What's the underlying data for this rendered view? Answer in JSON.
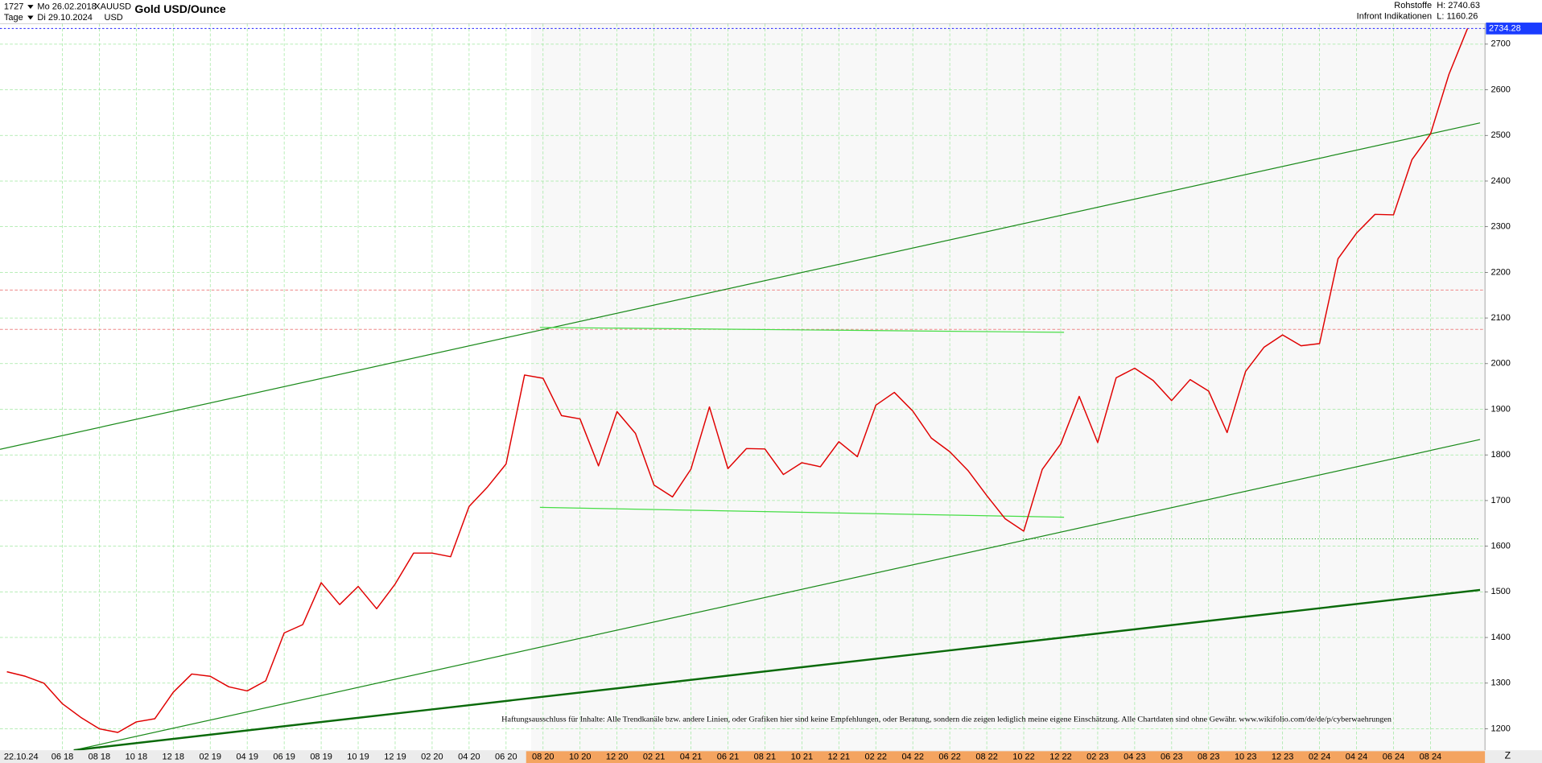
{
  "chart_data": {
    "type": "line",
    "title": "Gold USD/Ounce",
    "symbol": "XAUUSD",
    "currency": "USD",
    "count": "1727",
    "period": "Tage",
    "start": "Mo 26.02.2018",
    "end": "Di 29.10.2024",
    "group": "Rohstoffe",
    "source": "Infront Indikationen",
    "high": "H: 2740.63",
    "low": "L: 1160.26",
    "date_marker": "22.10.24",
    "corner_label": "Z",
    "disclaimer": "Haftungsausschluss für Inhalte: Alle Trendkanäle bzw. andere Linien, oder Grafiken hier sind keine Empfehlungen, oder Beratung, sondern die zeigen lediglich meine eigene Einschätzung. Alle Chartdaten sind ohne Gewähr. www.wikifolio.com/de/de/p/cyberwaehrungen",
    "last_price": 2734.28,
    "color": "#e00000",
    "categories": [
      null,
      null,
      null,
      "06 18",
      null,
      "08 18",
      null,
      "10 18",
      null,
      "12 18",
      null,
      "02 19",
      null,
      "04 19",
      null,
      "06 19",
      null,
      "08 19",
      null,
      "10 19",
      null,
      "12 19",
      null,
      "02 20",
      null,
      "04 20",
      null,
      "06 20",
      null,
      "08 20",
      null,
      "10 20",
      null,
      "12 20",
      null,
      "02 21",
      null,
      "04 21",
      null,
      "06 21",
      null,
      "08 21",
      null,
      "10 21",
      null,
      "12 21",
      null,
      "02 22",
      null,
      "04 22",
      null,
      "06 22",
      null,
      "08 22",
      null,
      "10 22",
      null,
      "12 22",
      null,
      "02 23",
      null,
      "04 23",
      null,
      "06 23",
      null,
      "08 23",
      null,
      "10 23",
      null,
      "12 23",
      null,
      "02 24",
      null,
      "04 24",
      null,
      "06 24",
      null,
      "08 24",
      null,
      null
    ],
    "values": [
      1325,
      1315,
      1300,
      1255,
      1225,
      1200,
      1192,
      1215,
      1222,
      1280,
      1320,
      1315,
      1292,
      1283,
      1305,
      1410,
      1428,
      1520,
      1472,
      1512,
      1463,
      1517,
      1585,
      1585,
      1577,
      1687,
      1730,
      1780,
      1975,
      1968,
      1886,
      1879,
      1776,
      1895,
      1847,
      1734,
      1708,
      1769,
      1905,
      1770,
      1814,
      1813,
      1757,
      1783,
      1774,
      1829,
      1796,
      1909,
      1937,
      1896,
      1837,
      1807,
      1765,
      1711,
      1660,
      1633,
      1768,
      1824,
      1928,
      1827,
      1969,
      1990,
      1963,
      1919,
      1965,
      1940,
      1849,
      1983,
      2036,
      2063,
      2039,
      2044,
      2230,
      2286,
      2327,
      2326,
      2447,
      2503,
      2634,
      2734
    ],
    "ylim": [
      1153,
      2745
    ],
    "yticks": [
      1200,
      1300,
      1400,
      1500,
      1600,
      1700,
      1800,
      1900,
      2000,
      2100,
      2200,
      2300,
      2400,
      2500,
      2600,
      2700
    ],
    "grid": true
  }
}
